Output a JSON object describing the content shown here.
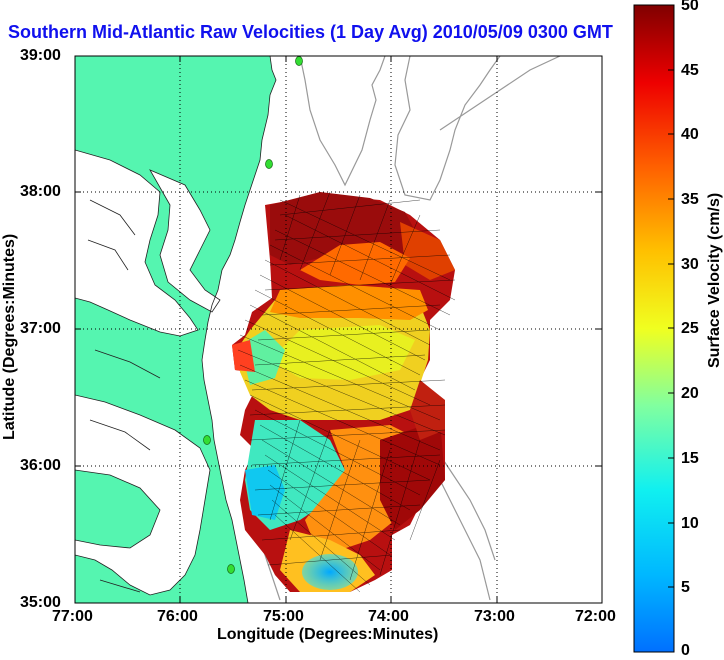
{
  "title": "Southern Mid-Atlantic Raw Velocities (1 Day Avg) 2010/05/09 0300 GMT",
  "axes": {
    "xlabel": "Longitude (Degrees:Minutes)",
    "ylabel": "Latitude (Degrees:Minutes)",
    "x_ticks": [
      "77:00",
      "76:00",
      "75:00",
      "74:00",
      "73:00",
      "72:00"
    ],
    "y_ticks": [
      "39:00",
      "38:00",
      "37:00",
      "36:00",
      "35:00"
    ],
    "grid": "dotted"
  },
  "colorbar": {
    "label": "Surface Velocity (cm/s)",
    "ticks": [
      "0",
      "5",
      "10",
      "15",
      "20",
      "25",
      "30",
      "35",
      "40",
      "45",
      "50"
    ],
    "range": [
      0,
      50
    ],
    "colormap": "jet"
  },
  "colors": {
    "title": "#1010ee",
    "land": "#55f5b0",
    "coastline": "#222222",
    "bathymetry": "#999999",
    "station": "#33dd33"
  }
}
